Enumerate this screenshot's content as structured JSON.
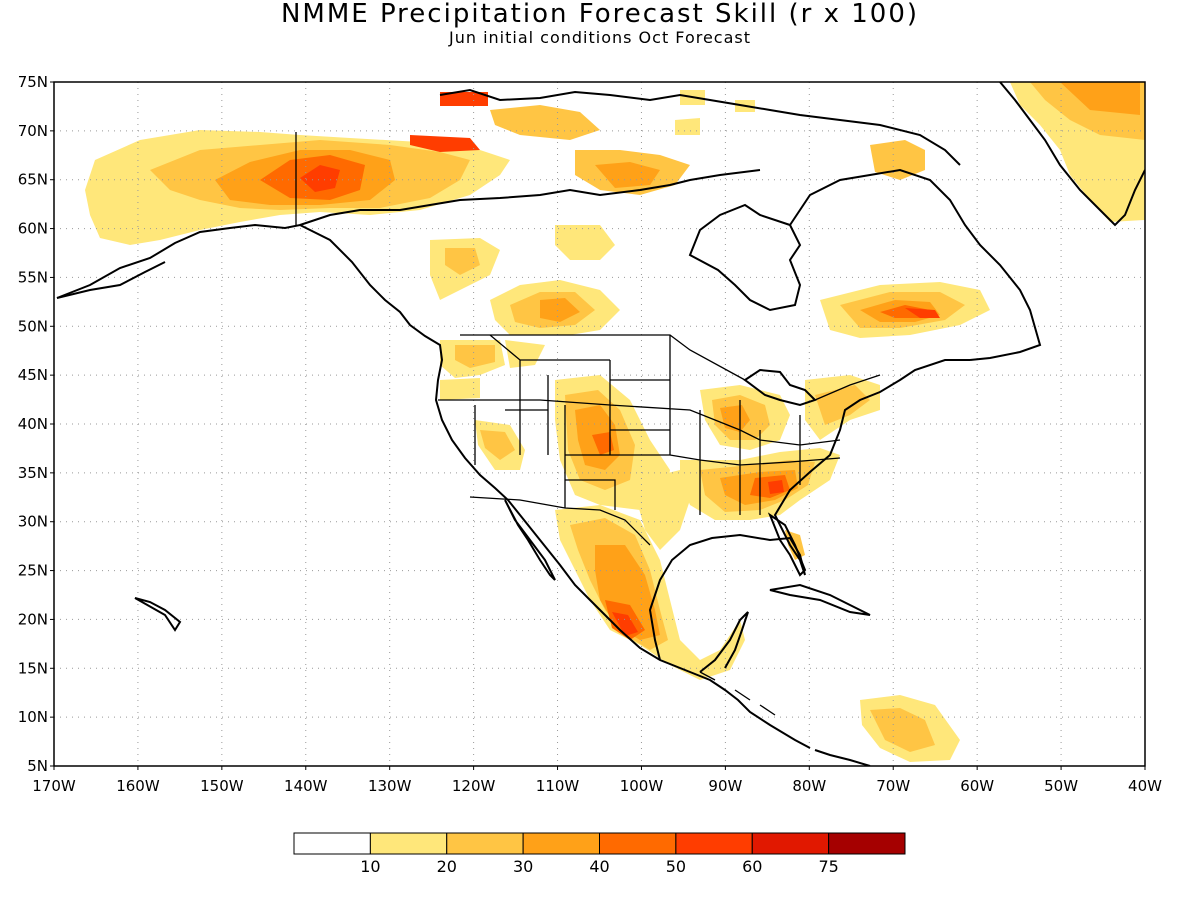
{
  "title": "NMME Precipitation Forecast Skill (r x 100)",
  "subtitle": "Jun initial conditions  Oct Forecast",
  "map": {
    "lon_range": [
      -170,
      -40
    ],
    "lat_range": [
      5,
      75
    ],
    "lat_labels": [
      "75N",
      "70N",
      "65N",
      "60N",
      "55N",
      "50N",
      "45N",
      "40N",
      "35N",
      "30N",
      "25N",
      "20N",
      "15N",
      "10N",
      "5N"
    ],
    "lon_labels": [
      "170W",
      "160W",
      "150W",
      "140W",
      "130W",
      "120W",
      "110W",
      "100W",
      "90W",
      "80W",
      "70W",
      "60W",
      "50W",
      "40W"
    ]
  },
  "colors": {
    "c1020": "#ffe77a",
    "c2030": "#ffc544",
    "c3040": "#ffa118",
    "c4050": "#ff6a00",
    "c5060": "#ff3d00",
    "c6075": "#e11800",
    "c75": "#a50000"
  },
  "colorbar": {
    "labels": [
      "10",
      "20",
      "30",
      "40",
      "50",
      "60",
      "75"
    ],
    "colors": [
      "#ffffff",
      "#ffe77a",
      "#ffc544",
      "#ffa118",
      "#ff6a00",
      "#ff3d00",
      "#e11800",
      "#a50000"
    ]
  }
}
